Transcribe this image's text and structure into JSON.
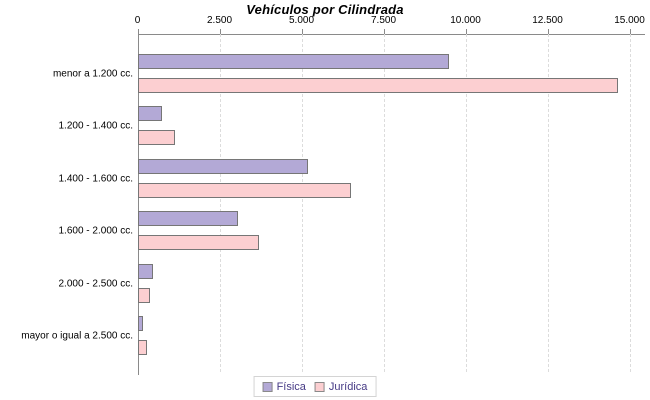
{
  "title": "Vehículos por Cilindrada",
  "chart_data": {
    "type": "bar",
    "orientation": "horizontal",
    "title": "Vehículos por Cilindrada",
    "categories": [
      "menor a 1.200 cc.",
      "1.200 - 1.400 cc.",
      "1.400 - 1.600 cc.",
      "1.600 - 2.000 cc.",
      "2.000 - 2.500 cc.",
      "mayor o igual a 2.500 cc."
    ],
    "series": [
      {
        "name": "Física",
        "color": "#b3a9d6",
        "border_color": "#767676",
        "values": [
          9500,
          750,
          5200,
          3050,
          480,
          170
        ]
      },
      {
        "name": "Jurídica",
        "color": "#fccfd1",
        "border_color": "#767676",
        "values": [
          14650,
          1150,
          6500,
          3700,
          380,
          300
        ]
      }
    ],
    "xlim": [
      0,
      15000
    ],
    "x_ticks": [
      0,
      2500,
      5000,
      7500,
      10000,
      12500,
      15000
    ],
    "x_tick_labels": [
      "0",
      "2.500",
      "5.000",
      "7.500",
      "10.000",
      "12.500",
      "15.000"
    ],
    "axis_position": "top",
    "grid": "vertical-dashed",
    "legend_position": "bottom"
  },
  "legend": {
    "items": [
      {
        "label": "Física",
        "color": "#b3a9d6"
      },
      {
        "label": "Jurídica",
        "color": "#fccfd1"
      }
    ]
  },
  "colors": {
    "background": "#ffffff",
    "axis": "#8a8a8a",
    "gridline": "#dcdcdc",
    "bar_border": "#767676",
    "legend_text": "#463a85",
    "legend_border": "#d4d4d4",
    "title_text": "#000000",
    "label_text": "#000000"
  }
}
